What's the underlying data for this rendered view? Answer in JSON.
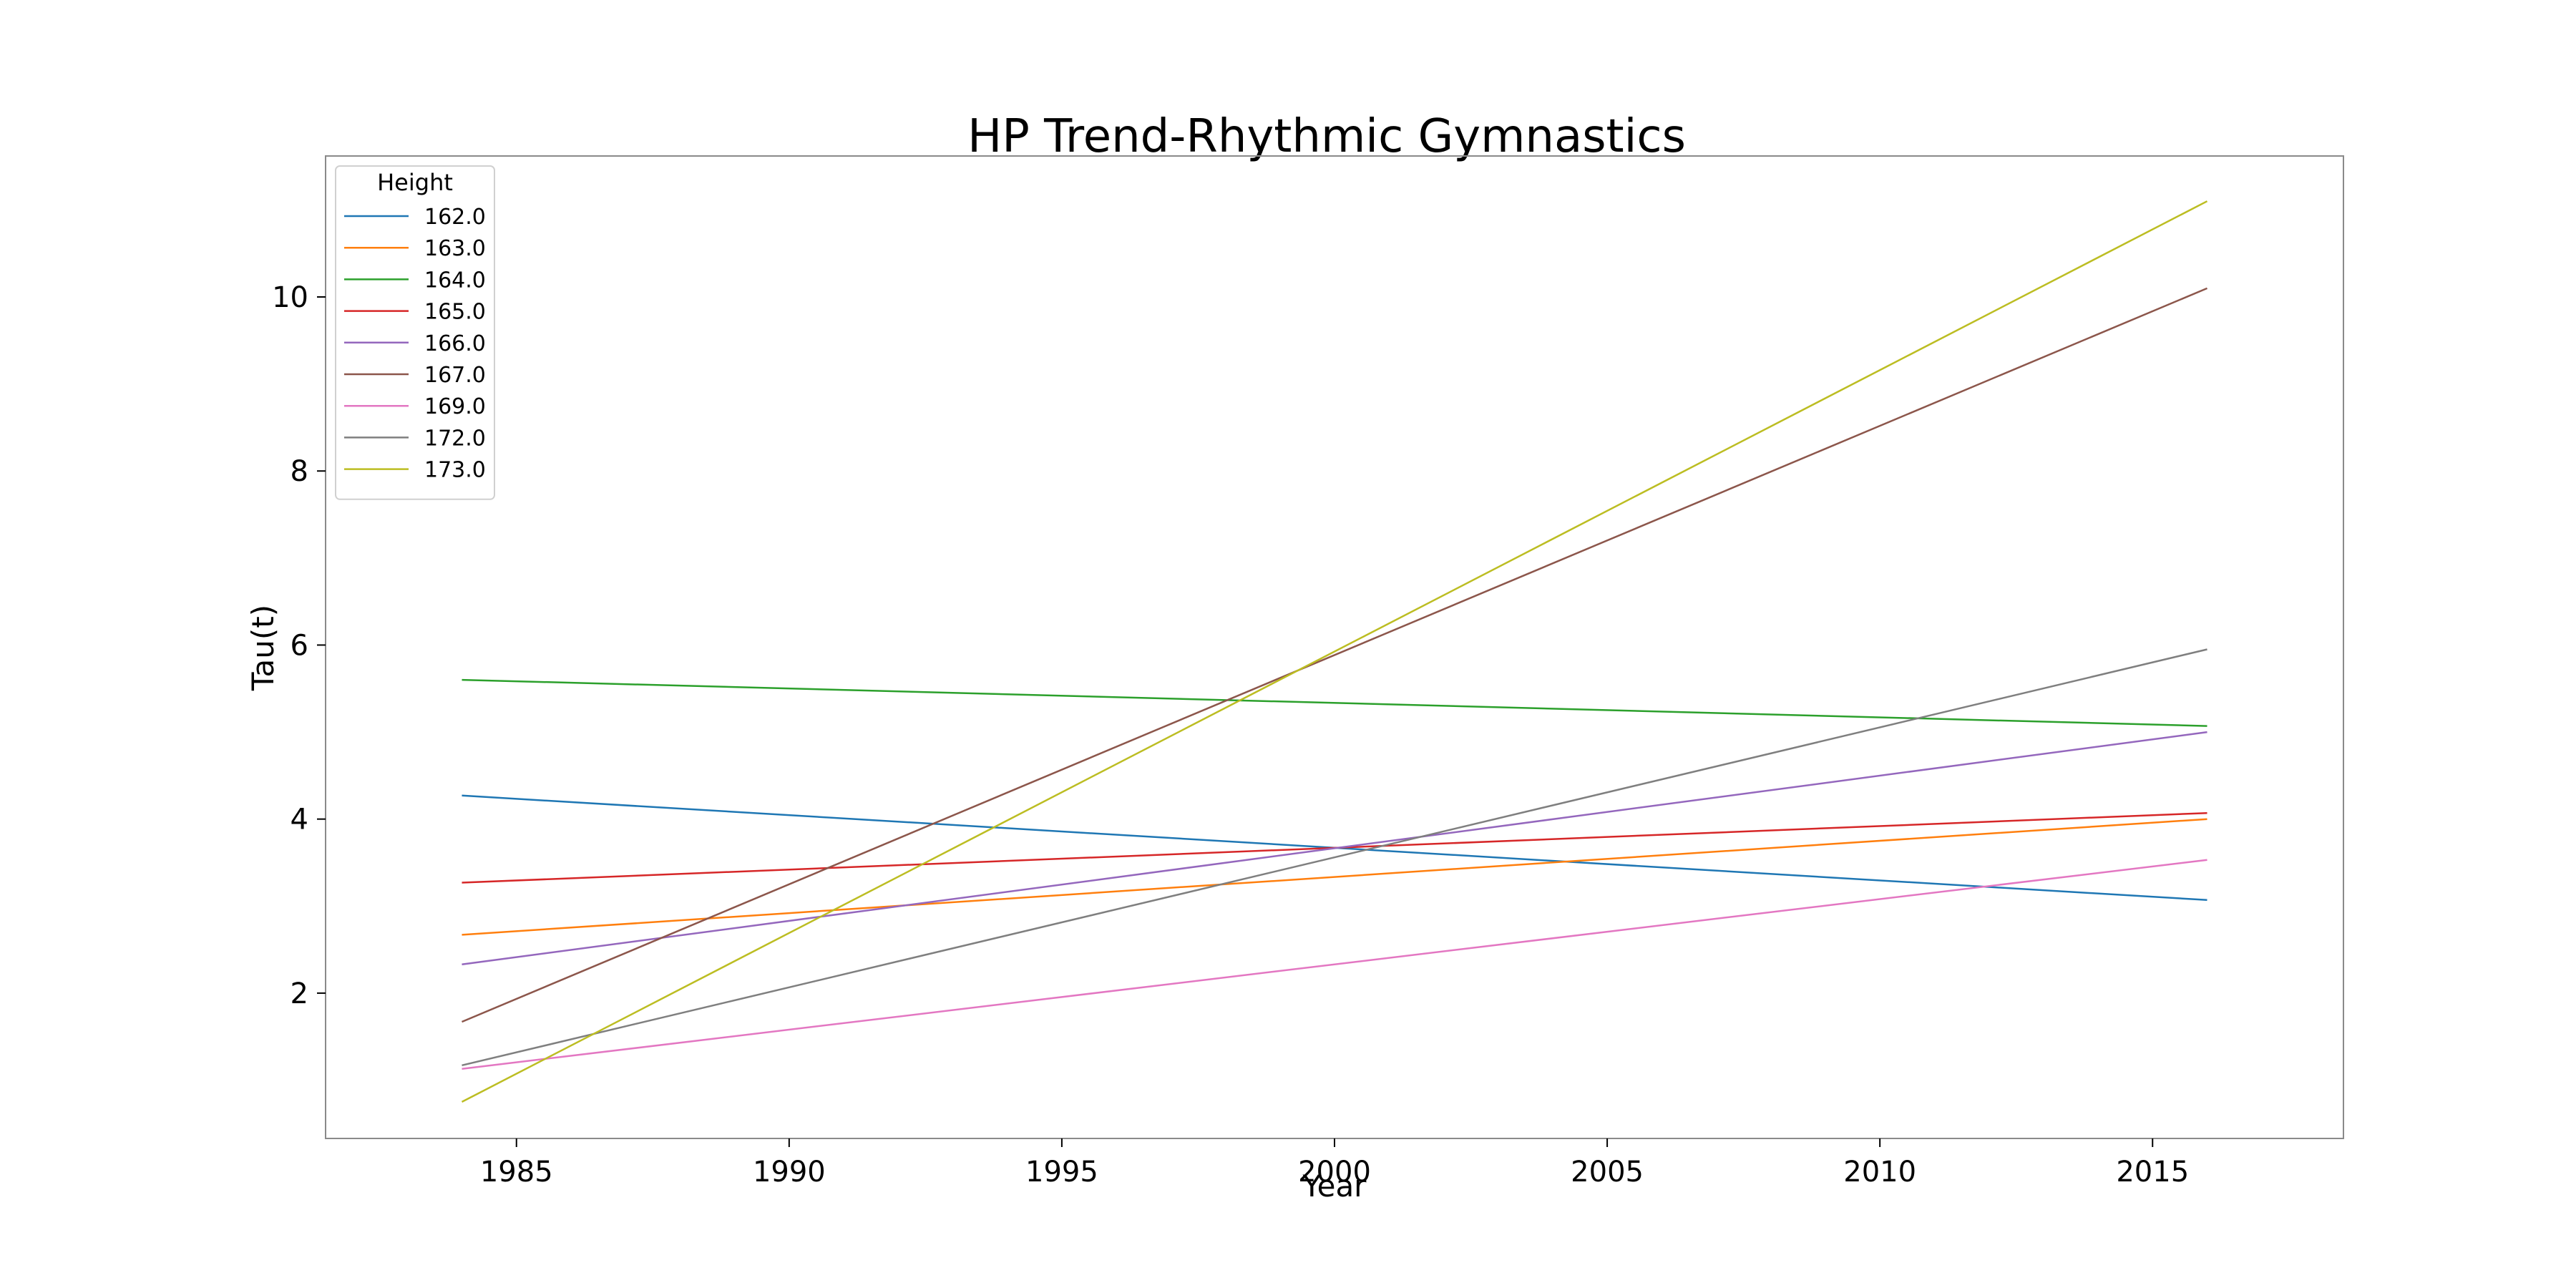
{
  "chart_data": {
    "type": "line",
    "title": "HP Trend-Rhythmic Gymnastics",
    "xlabel": "Year",
    "ylabel": "Tau(t)",
    "xlim": [
      1981.5,
      2018.5
    ],
    "ylim": [
      0.33,
      11.62
    ],
    "xticks": [
      1985,
      1990,
      1995,
      2000,
      2005,
      2010,
      2015
    ],
    "yticks": [
      2,
      4,
      6,
      8,
      10
    ],
    "grid": false,
    "legend": {
      "title": "Height",
      "placement": "top-left"
    },
    "x": [
      1984,
      2016
    ],
    "series": [
      {
        "name": "162.0",
        "color": "#1f77b4",
        "values": [
          4.27,
          3.07
        ]
      },
      {
        "name": "163.0",
        "color": "#ff7f0e",
        "values": [
          2.67,
          4.0
        ]
      },
      {
        "name": "164.0",
        "color": "#2ca02c",
        "values": [
          5.6,
          5.07
        ]
      },
      {
        "name": "165.0",
        "color": "#d62728",
        "values": [
          3.27,
          4.07
        ]
      },
      {
        "name": "166.0",
        "color": "#9467bd",
        "values": [
          2.33,
          5.0
        ]
      },
      {
        "name": "167.0",
        "color": "#8c564b",
        "values": [
          1.67,
          10.1
        ]
      },
      {
        "name": "169.0",
        "color": "#e377c2",
        "values": [
          1.13,
          3.53
        ]
      },
      {
        "name": "172.0",
        "color": "#7f7f7f",
        "values": [
          1.17,
          5.95
        ]
      },
      {
        "name": "173.0",
        "color": "#bcbd22",
        "values": [
          0.75,
          11.1
        ]
      }
    ]
  }
}
